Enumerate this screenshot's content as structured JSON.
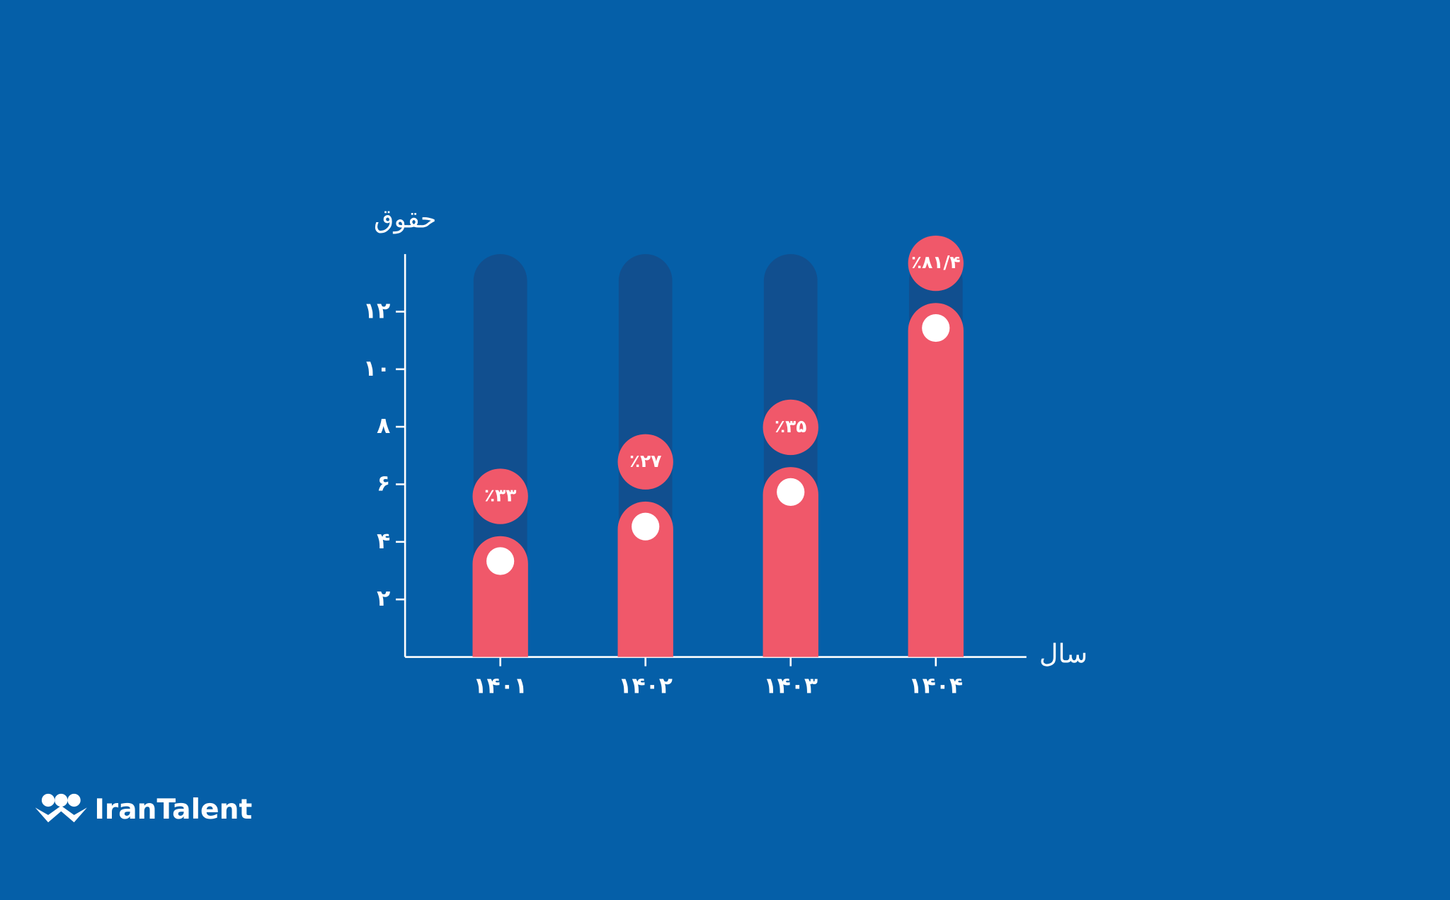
{
  "chart_data": {
    "type": "bar",
    "y_label": "حقوق",
    "x_label": "سال",
    "categories": [
      "۱۴۰۱",
      "۱۴۰۲",
      "۱۴۰۳",
      "۱۴۰۴"
    ],
    "values": [
      4.2,
      5.4,
      6.6,
      12.3
    ],
    "annotations": [
      "٪۳۳",
      "٪۲۷",
      "٪۳۵",
      "٪۸۱/۴"
    ],
    "color": "#f0586a",
    "track_color": "#114f8f",
    "ylim": [
      0,
      14
    ],
    "yticks": [
      {
        "value": 2,
        "label": "۲"
      },
      {
        "value": 4,
        "label": "۴"
      },
      {
        "value": 6,
        "label": "۶"
      },
      {
        "value": 8,
        "label": "۸"
      },
      {
        "value": 10,
        "label": "۱۰"
      },
      {
        "value": 12,
        "label": "۱۲"
      }
    ]
  },
  "logo": "IranTalent"
}
